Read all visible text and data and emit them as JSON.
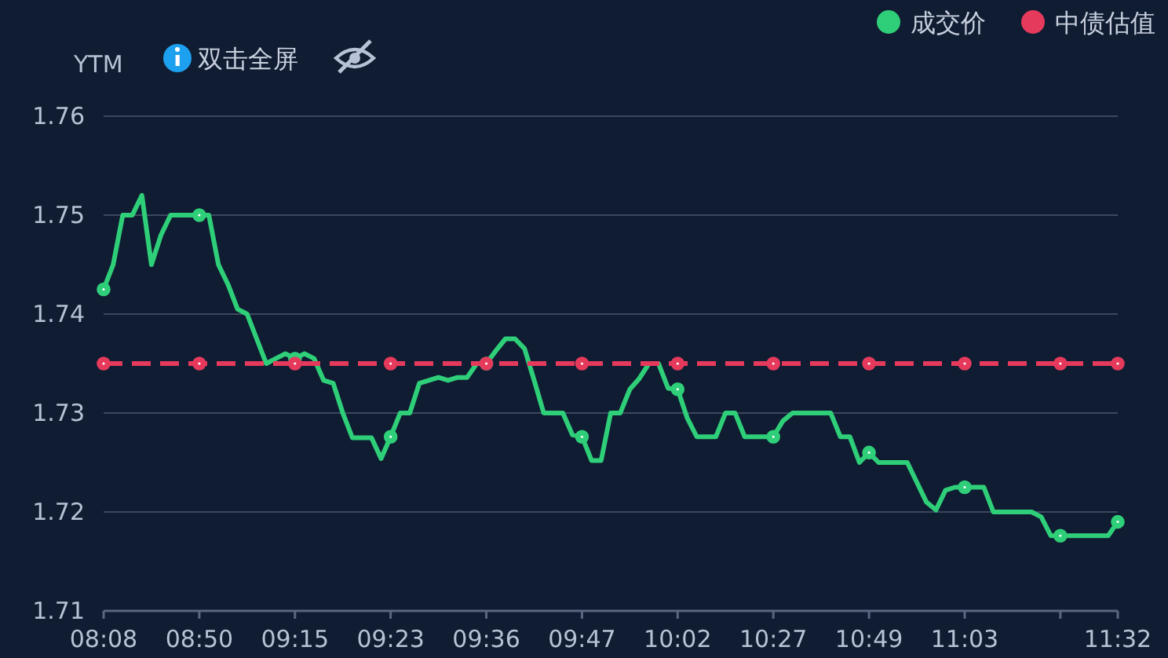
{
  "chart_data": {
    "type": "line",
    "ylabel": "YTM",
    "annotations": [
      "双击全屏"
    ],
    "categories": [
      "08:08",
      null,
      null,
      null,
      null,
      null,
      null,
      null,
      null,
      null,
      "08:50",
      null,
      null,
      null,
      null,
      null,
      null,
      null,
      null,
      null,
      "09:15",
      null,
      null,
      null,
      null,
      null,
      null,
      null,
      null,
      null,
      "09:23",
      null,
      null,
      null,
      null,
      null,
      null,
      null,
      null,
      null,
      "09:36",
      null,
      null,
      null,
      null,
      null,
      null,
      null,
      null,
      null,
      "09:47",
      null,
      null,
      null,
      null,
      null,
      null,
      null,
      null,
      null,
      "10:02",
      null,
      null,
      null,
      null,
      null,
      null,
      null,
      null,
      null,
      "10:27",
      null,
      null,
      null,
      null,
      null,
      null,
      null,
      null,
      null,
      "10:49",
      null,
      null,
      null,
      null,
      null,
      null,
      null,
      null,
      null,
      "11:03",
      null,
      null,
      null,
      null,
      null,
      null,
      null,
      null,
      null,
      null,
      null,
      null,
      null,
      null,
      null,
      "11:32"
    ],
    "series": [
      {
        "name": "成交价",
        "color": "#2ecf78",
        "line_style": "solid",
        "values": [
          1.7425,
          1.745,
          1.75,
          1.75,
          1.752,
          1.745,
          1.748,
          1.75,
          1.75,
          1.75,
          1.75,
          1.75,
          1.745,
          1.743,
          1.7405,
          1.74,
          1.7375,
          1.735,
          1.7355,
          1.736,
          1.7355,
          1.736,
          1.7355,
          1.7333,
          1.733,
          1.73,
          1.7275,
          1.7275,
          1.7275,
          1.7254,
          1.7276,
          1.73,
          1.73,
          1.733,
          1.7333,
          1.7336,
          1.7333,
          1.7336,
          1.7336,
          1.735,
          1.735,
          1.7363,
          1.7375,
          1.7375,
          1.7365,
          1.7333,
          1.73,
          1.73,
          1.73,
          1.7278,
          1.7276,
          1.7252,
          1.7252,
          1.73,
          1.73,
          1.7324,
          1.7335,
          1.735,
          1.735,
          1.7325,
          1.7324,
          1.7295,
          1.7276,
          1.7276,
          1.7276,
          1.73,
          1.73,
          1.7276,
          1.7276,
          1.7276,
          1.7276,
          1.7292,
          1.73,
          1.73,
          1.73,
          1.73,
          1.73,
          1.7276,
          1.7276,
          1.725,
          1.726,
          1.725,
          1.725,
          1.725,
          1.725,
          1.723,
          1.721,
          1.7202,
          1.7222,
          1.7225,
          1.7225,
          1.7225,
          1.7225,
          1.72,
          1.72,
          1.72,
          1.72,
          1.72,
          1.7195,
          1.7176,
          1.7176,
          1.7176,
          1.7176,
          1.7176,
          1.7176,
          1.7176,
          1.719
        ]
      },
      {
        "name": "中债估值",
        "color": "#e63a5c",
        "line_style": "dashed",
        "values": [
          1.735,
          1.735,
          1.735,
          1.735,
          1.735,
          1.735,
          1.735,
          1.735,
          1.735,
          1.735,
          1.735,
          1.735,
          1.735,
          1.735,
          1.735,
          1.735,
          1.735,
          1.735,
          1.735,
          1.735,
          1.735,
          1.735,
          1.735,
          1.735,
          1.735,
          1.735,
          1.735,
          1.735,
          1.735,
          1.735,
          1.735,
          1.735,
          1.735,
          1.735,
          1.735,
          1.735,
          1.735,
          1.735,
          1.735,
          1.735,
          1.735,
          1.735,
          1.735,
          1.735,
          1.735,
          1.735,
          1.735,
          1.735,
          1.735,
          1.735,
          1.735,
          1.735,
          1.735,
          1.735,
          1.735,
          1.735,
          1.735,
          1.735,
          1.735,
          1.735,
          1.735,
          1.735,
          1.735,
          1.735,
          1.735,
          1.735,
          1.735,
          1.735,
          1.735,
          1.735,
          1.735,
          1.735,
          1.735,
          1.735,
          1.735,
          1.735,
          1.735,
          1.735,
          1.735,
          1.735,
          1.735,
          1.735,
          1.735,
          1.735,
          1.735,
          1.735,
          1.735,
          1.735,
          1.735,
          1.735,
          1.735,
          1.735,
          1.735,
          1.735,
          1.735,
          1.735,
          1.735,
          1.735,
          1.735,
          1.735,
          1.735,
          1.735,
          1.735,
          1.735,
          1.735,
          1.735,
          1.735
        ]
      }
    ],
    "ylim": [
      1.71,
      1.76
    ],
    "yticks": [
      1.71,
      1.72,
      1.73,
      1.74,
      1.75,
      1.76
    ],
    "grid": "y",
    "legend": "top right"
  }
}
